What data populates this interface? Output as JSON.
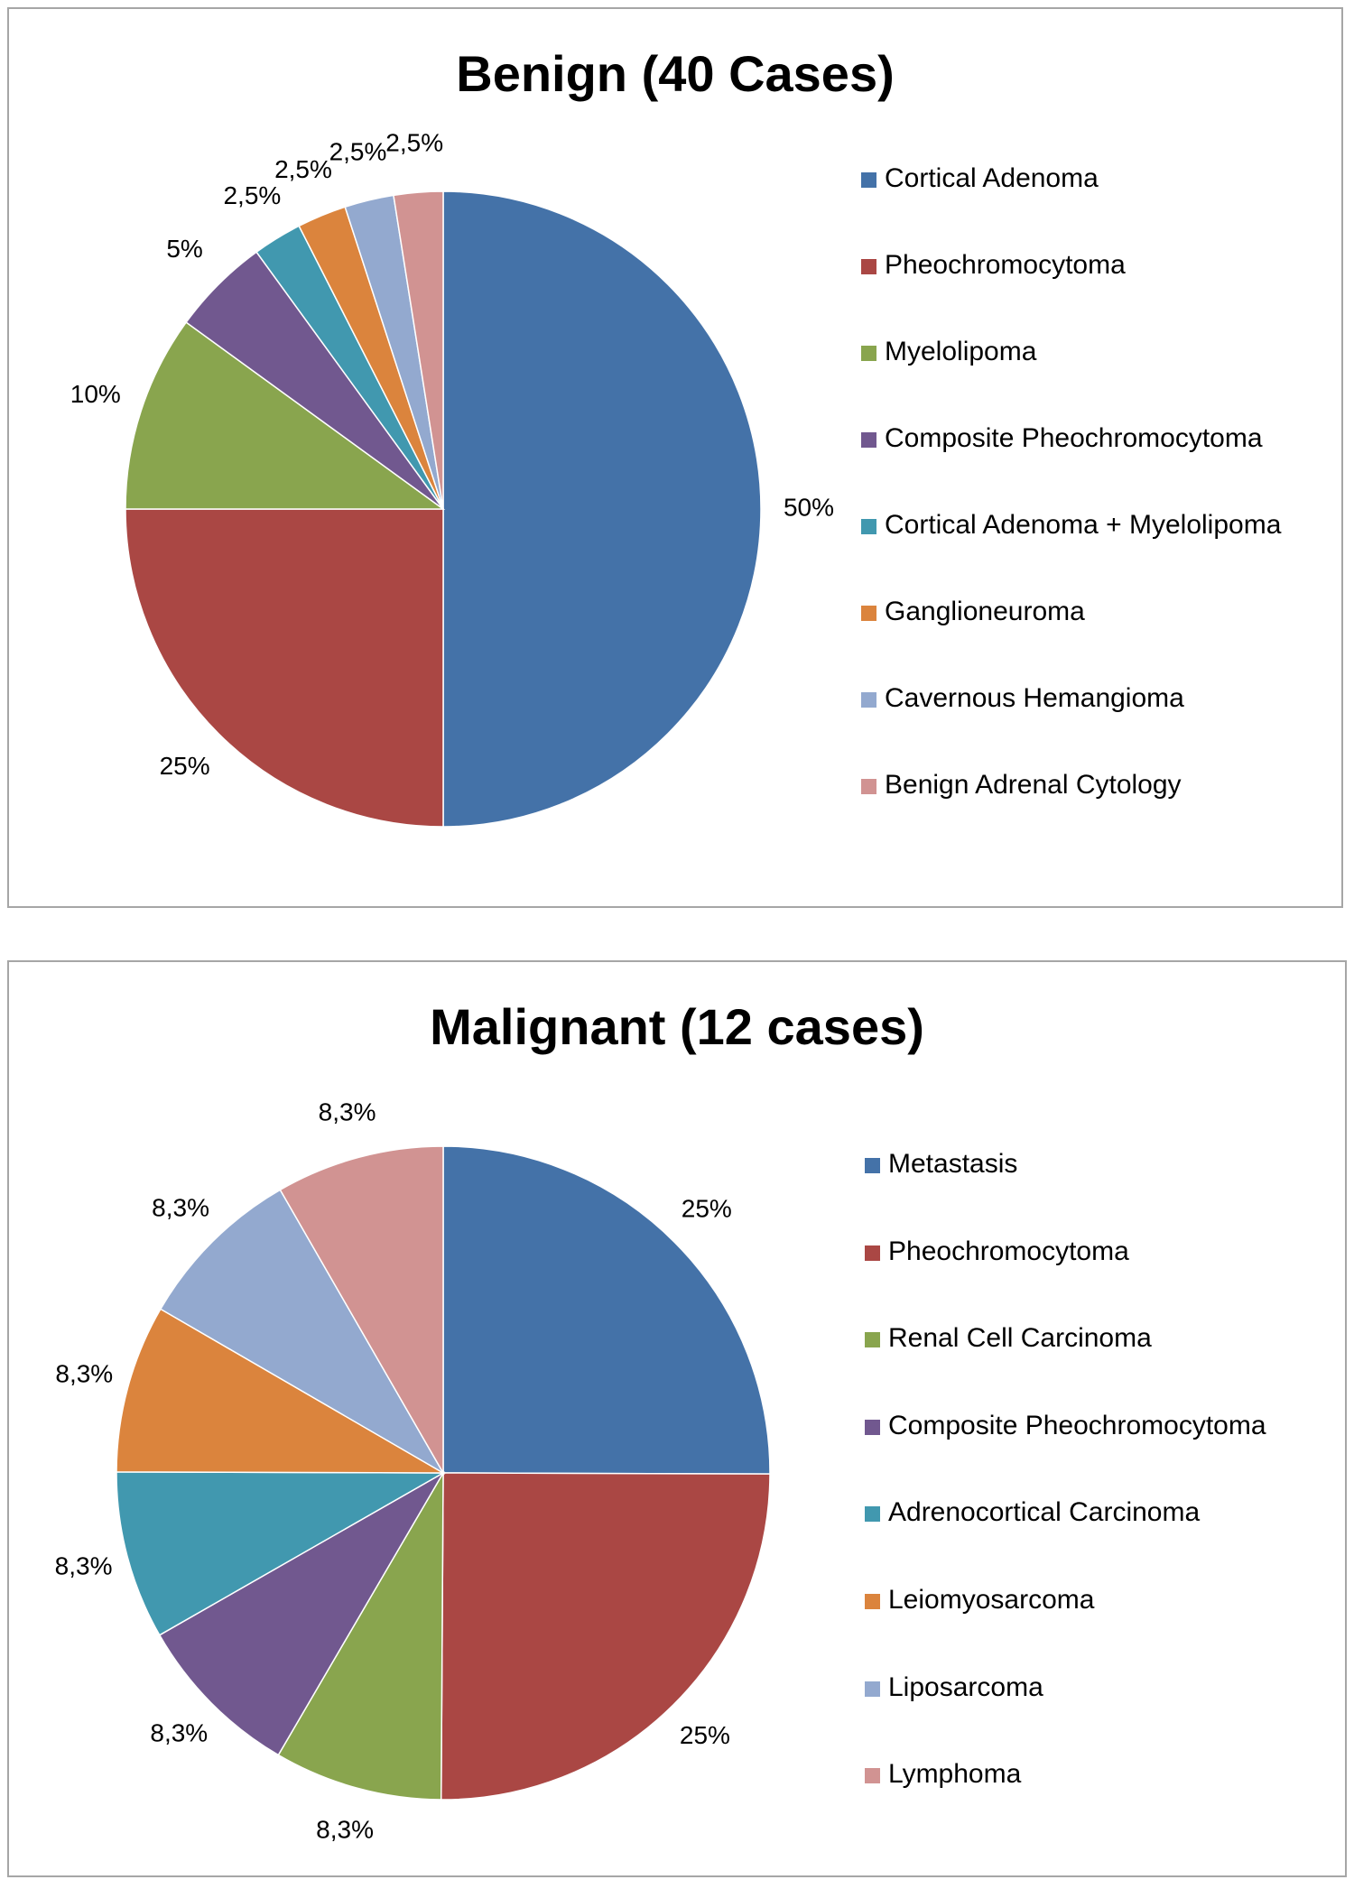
{
  "chart_data": [
    {
      "type": "pie",
      "title": "Benign (40 Cases)",
      "legend_position": "right",
      "categories": [
        "Cortical Adenoma",
        "Pheochromocytoma",
        "Myelolipoma",
        "Composite Pheochromocytoma",
        "Cortical Adenoma + Myelolipoma",
        "Ganglioneuroma",
        "Cavernous Hemangioma",
        "Benign Adrenal Cytology"
      ],
      "values": [
        50,
        25,
        10,
        5,
        2.5,
        2.5,
        2.5,
        2.5
      ],
      "labels": [
        "50%",
        "25%",
        "10%",
        "5%",
        "2,5%",
        "2,5%",
        "2,5%",
        "2,5%"
      ],
      "colors": [
        "#4472a8",
        "#aa4744",
        "#89a54e",
        "#71588f",
        "#4198af",
        "#db843d",
        "#93a9cf",
        "#d19392"
      ]
    },
    {
      "type": "pie",
      "title": "Malignant (12 cases)",
      "legend_position": "right",
      "categories": [
        "Metastasis",
        "Pheochromocytoma",
        "Renal Cell Carcinoma",
        "Composite Pheochromocytoma",
        "Adrenocortical Carcinoma",
        "Leiomyosarcoma",
        "Liposarcoma",
        "Lymphoma"
      ],
      "values": [
        25,
        25,
        8.3,
        8.3,
        8.3,
        8.3,
        8.3,
        8.3
      ],
      "labels": [
        "25%",
        "25%",
        "8,3%",
        "8,3%",
        "8,3%",
        "8,3%",
        "8,3%",
        "8,3%"
      ],
      "colors": [
        "#4472a8",
        "#aa4744",
        "#89a54e",
        "#71588f",
        "#4198af",
        "#db843d",
        "#93a9cf",
        "#d19392"
      ]
    }
  ]
}
